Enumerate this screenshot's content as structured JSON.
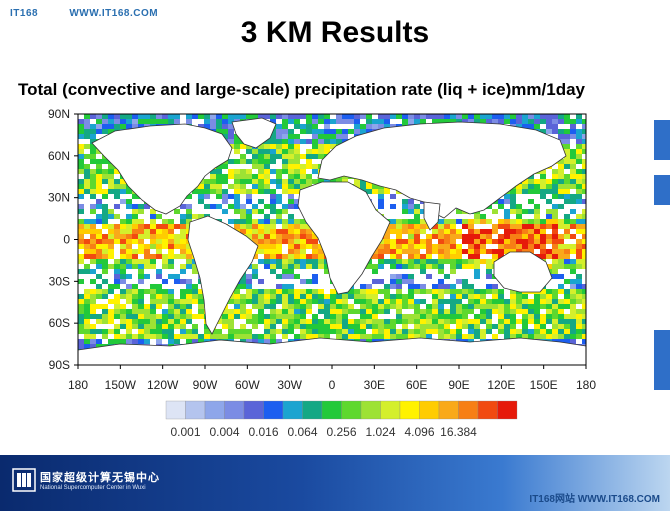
{
  "watermark_top": [
    "IT168",
    "WWW.IT168.COM"
  ],
  "slide_title": "3 KM Results",
  "map_title": "Total (convective and large-scale) precipitation rate (liq + ice)mm/1day",
  "lat_labels": [
    "90N",
    "60N",
    "30N",
    "0",
    "30S",
    "60S",
    "90S"
  ],
  "lon_labels": [
    "180",
    "150W",
    "120W",
    "90W",
    "60W",
    "30W",
    "0",
    "30E",
    "60E",
    "90E",
    "120E",
    "150E",
    "180"
  ],
  "legend": {
    "colors": [
      "#dde4f5",
      "#b4c4ee",
      "#8ea6ea",
      "#7b8ce4",
      "#5a64d8",
      "#1c5ef0",
      "#1ba4d0",
      "#14a884",
      "#22c93a",
      "#5ed82e",
      "#9de234",
      "#d4ef2c",
      "#fff200",
      "#ffcc00",
      "#f9a91a",
      "#f77f15",
      "#f14a10",
      "#e61a0a"
    ],
    "labels": [
      "0.001",
      "0.004",
      "0.016",
      "0.064",
      "0.256",
      "1.024",
      "4.096",
      "16.384"
    ]
  },
  "footer": {
    "org_cn": "国家超级计算无锡中心",
    "org_en": "National Supercomputer Center in Wuxi",
    "watermark": "IT168网站 WWW.IT168.COM"
  }
}
